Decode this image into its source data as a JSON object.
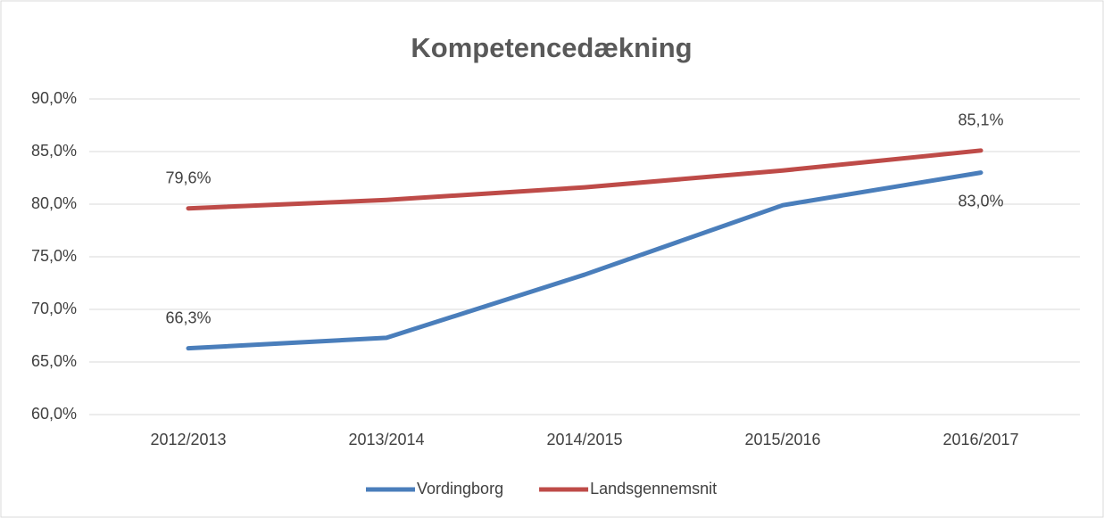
{
  "chart_data": {
    "type": "line",
    "title": "Kompetencedækning",
    "categories": [
      "2012/2013",
      "2013/2014",
      "2014/2015",
      "2015/2016",
      "2016/2017"
    ],
    "series": [
      {
        "name": "Vordingborg",
        "color": "#4a7ebb",
        "values": [
          66.3,
          67.3,
          73.3,
          79.9,
          83.0
        ],
        "value_labels": [
          "66,3%",
          null,
          null,
          null,
          "83,0%"
        ]
      },
      {
        "name": "Landsgennemsnit",
        "color": "#be4b48",
        "values": [
          79.6,
          80.4,
          81.6,
          83.2,
          85.1
        ],
        "value_labels": [
          "79,6%",
          null,
          null,
          null,
          "85,1%"
        ]
      }
    ],
    "ylim": [
      60,
      90
    ],
    "yticks": [
      {
        "value": 60,
        "label": "60,0%"
      },
      {
        "value": 65,
        "label": "65,0%"
      },
      {
        "value": 70,
        "label": "70,0%"
      },
      {
        "value": 75,
        "label": "75,0%"
      },
      {
        "value": 80,
        "label": "80,0%"
      },
      {
        "value": 85,
        "label": "85,0%"
      },
      {
        "value": 90,
        "label": "90,0%"
      }
    ],
    "grid": true,
    "legend": "bottom"
  }
}
